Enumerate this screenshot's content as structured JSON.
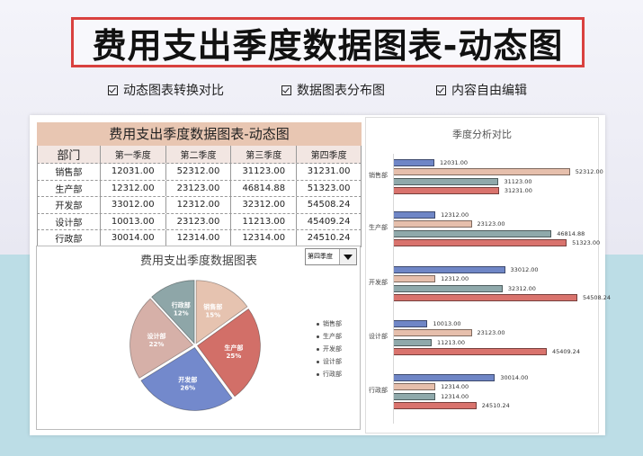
{
  "header": {
    "title": "费用支出季度数据图表-动态图",
    "features": [
      "动态图表转换对比",
      "数据图表分布图",
      "内容自由编辑"
    ]
  },
  "table": {
    "title": "费用支出季度数据图表-动态图",
    "columns": [
      "部门",
      "第一季度",
      "第二季度",
      "第三季度",
      "第四季度"
    ],
    "rows": [
      [
        "销售部",
        "12031.00",
        "52312.00",
        "31123.00",
        "31231.00"
      ],
      [
        "生产部",
        "12312.00",
        "23123.00",
        "46814.88",
        "51323.00"
      ],
      [
        "开发部",
        "33012.00",
        "12312.00",
        "32312.00",
        "54508.24"
      ],
      [
        "设计部",
        "10013.00",
        "23123.00",
        "11213.00",
        "45409.24"
      ],
      [
        "行政部",
        "30014.00",
        "12314.00",
        "12314.00",
        "24510.24"
      ]
    ]
  },
  "pie_panel": {
    "title": "费用支出季度数据图表",
    "dropdown_value": "第四季度"
  },
  "bar_panel": {
    "title": "季度分析对比"
  },
  "colors": {
    "q1": "#6f86c6",
    "q2": "#e6bfac",
    "q3": "#8fa9ab",
    "q4": "#d9736d",
    "pie_sales": "#e6c3b0",
    "pie_production": "#d26f68",
    "pie_dev": "#7389cc",
    "pie_design": "#d6b0a8",
    "pie_admin": "#8ea6a8",
    "headline_border": "#d9413f",
    "table_title_bg": "#e8c6b2"
  },
  "chart_data": [
    {
      "type": "pie",
      "title": "费用支出季度数据图表",
      "selected_series": "第四季度",
      "categories": [
        "销售部",
        "生产部",
        "开发部",
        "设计部",
        "行政部"
      ],
      "values": [
        31231.0,
        51323.0,
        54508.24,
        45409.24,
        24510.24
      ],
      "labels": [
        "15%",
        "25%",
        "26%",
        "22%",
        "12%"
      ],
      "legend": [
        "销售部",
        "生产部",
        "开发部",
        "设计部",
        "行政部"
      ],
      "legend_position": "right"
    },
    {
      "type": "bar",
      "orientation": "horizontal",
      "title": "季度分析对比",
      "categories": [
        "销售部",
        "生产部",
        "开发部",
        "设计部",
        "行政部"
      ],
      "series": [
        {
          "name": "第一季度",
          "values": [
            12031.0,
            12312.0,
            33012.0,
            10013.0,
            30014.0
          ]
        },
        {
          "name": "第二季度",
          "values": [
            52312.0,
            23123.0,
            12312.0,
            23123.0,
            12314.0
          ]
        },
        {
          "name": "第三季度",
          "values": [
            31123.0,
            46814.88,
            32312.0,
            11213.0,
            12314.0
          ]
        },
        {
          "name": "第四季度",
          "values": [
            31231.0,
            51323.0,
            54508.24,
            45409.24,
            24510.24
          ]
        }
      ],
      "value_labels": [
        [
          "12031.00",
          "52312.00",
          "31123.00",
          "31231.00"
        ],
        [
          "12312.00",
          "23123.00",
          "46814.88",
          "51323.00"
        ],
        [
          "33012.00",
          "12312.00",
          "32312.00",
          "54508.24"
        ],
        [
          "10013.00",
          "23123.00",
          "11213.00",
          "45409.24"
        ],
        [
          "30014.00",
          "12314.00",
          "12314.00",
          "24510.24"
        ]
      ],
      "xlabel": "",
      "ylabel": "",
      "grid": false
    }
  ]
}
